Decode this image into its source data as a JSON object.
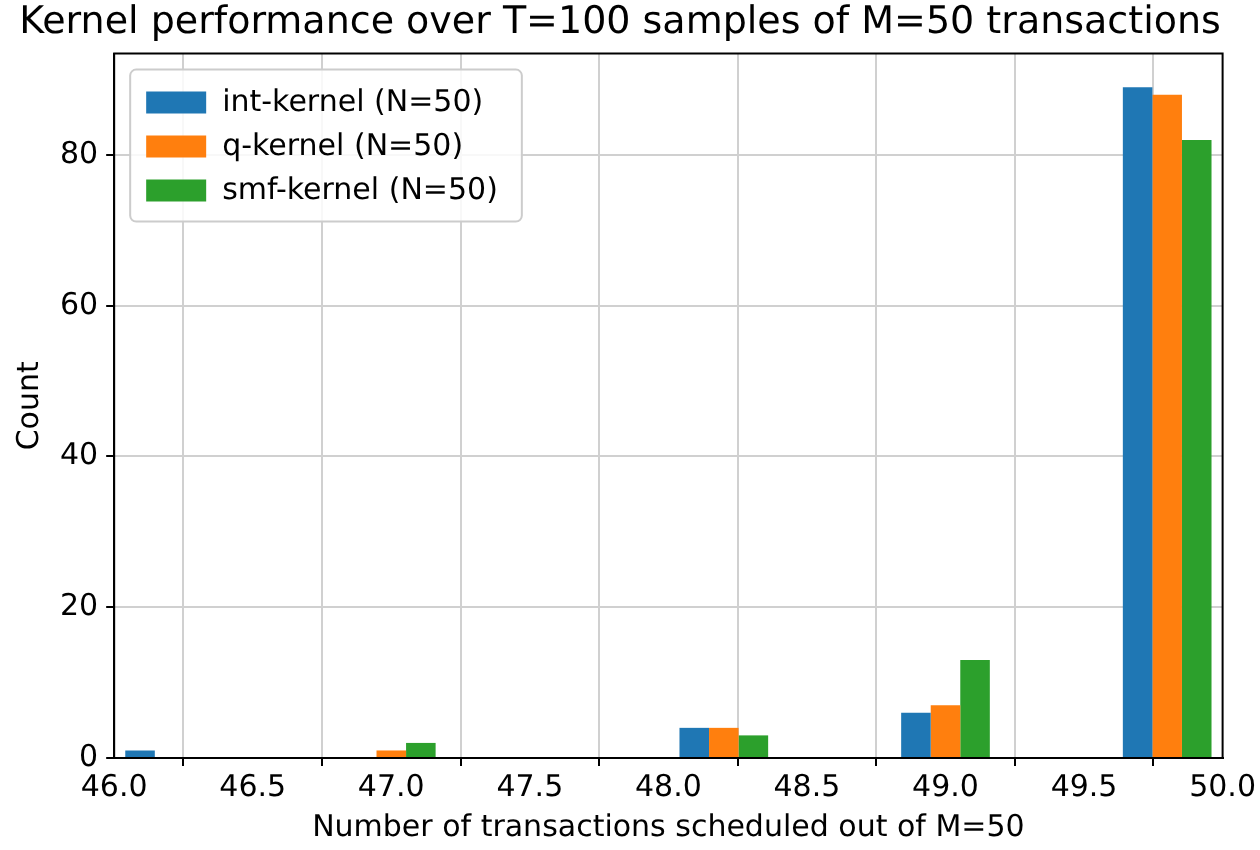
{
  "chart_data": {
    "type": "histogram",
    "title": "Kernel performance over T=100 samples of M=50 transactions",
    "xlabel": "Number of transactions scheduled out of M=50",
    "ylabel": "Count",
    "bins": [
      46.0,
      46.4,
      46.8,
      47.2,
      47.6,
      48.0,
      48.4,
      48.8,
      49.2,
      49.6,
      50.0
    ],
    "series": [
      {
        "name": "int-kernel (N=50)",
        "color": "#1f77b4",
        "values": [
          1,
          0,
          0,
          0,
          0,
          4,
          0,
          6,
          0,
          89
        ]
      },
      {
        "name": "q-kernel (N=50)",
        "color": "#ff7f0e",
        "values": [
          0,
          0,
          1,
          0,
          0,
          4,
          0,
          7,
          0,
          88
        ]
      },
      {
        "name": "smf-kernel (N=50)",
        "color": "#2ca02c",
        "values": [
          0,
          0,
          2,
          0,
          0,
          3,
          0,
          13,
          0,
          82
        ]
      }
    ],
    "xlim": [
      46.0,
      50.0
    ],
    "xticks": [
      {
        "value": 46.0,
        "label": "46.0"
      },
      {
        "value": 46.5,
        "label": "46.5"
      },
      {
        "value": 47.0,
        "label": "47.0"
      },
      {
        "value": 47.5,
        "label": "47.5"
      },
      {
        "value": 48.0,
        "label": "48.0"
      },
      {
        "value": 48.5,
        "label": "48.5"
      },
      {
        "value": 49.0,
        "label": "49.0"
      },
      {
        "value": 49.5,
        "label": "49.5"
      },
      {
        "value": 50.0,
        "label": "50.0"
      }
    ],
    "ylim": [
      0,
      93.45
    ],
    "yticks": [
      0,
      20,
      40,
      60,
      80
    ],
    "grid": true,
    "legend": "top left"
  }
}
